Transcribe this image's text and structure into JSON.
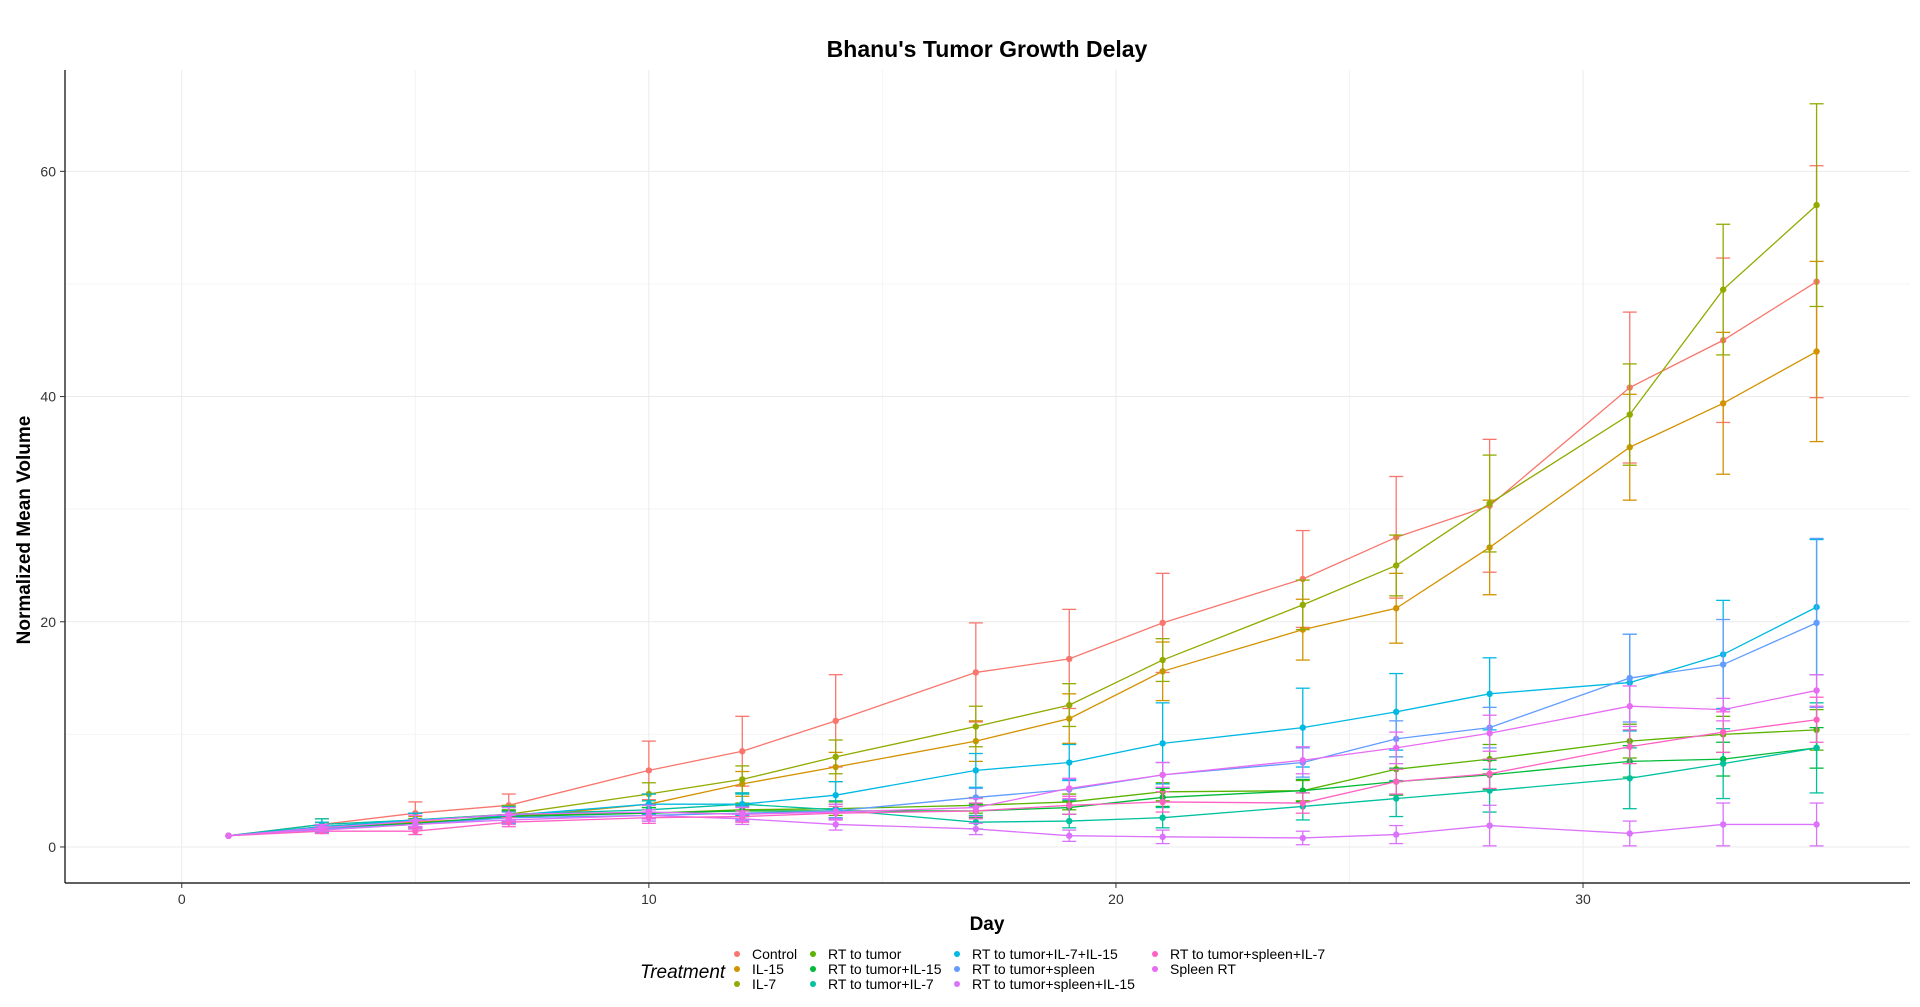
{
  "chart_data": {
    "type": "line",
    "title": "Bhanu's Tumor Growth Delay",
    "xlabel": "Day",
    "ylabel": "Normalized Mean Volume",
    "xlim": [
      -2.5,
      37
    ],
    "ylim": [
      -3.2,
      69
    ],
    "xticks": [
      0,
      10,
      20,
      30
    ],
    "yticks": [
      0,
      20,
      40,
      60
    ],
    "grid": true,
    "legend": {
      "title": "Treatment",
      "position": "bottom"
    },
    "series": [
      {
        "name": "Control",
        "color": "#F8766D",
        "x": [
          1,
          3,
          5,
          7,
          10,
          12,
          14,
          17,
          19,
          21,
          24,
          26,
          28,
          31,
          33,
          35
        ],
        "y": [
          1,
          2.0,
          3.0,
          3.7,
          6.8,
          8.5,
          11.2,
          15.5,
          16.7,
          19.9,
          23.8,
          27.5,
          30.3,
          40.8,
          45.0,
          50.2
        ],
        "err": [
          0,
          0.5,
          1.0,
          1.0,
          2.6,
          3.1,
          4.1,
          4.4,
          4.4,
          4.4,
          4.3,
          5.4,
          5.9,
          6.7,
          7.3,
          10.3
        ]
      },
      {
        "name": "IL-15",
        "color": "#D39200",
        "x": [
          1,
          3,
          5,
          7,
          10,
          12,
          14,
          17,
          19,
          21,
          24,
          26,
          28,
          31,
          33,
          35
        ],
        "y": [
          1,
          1.6,
          2.2,
          2.6,
          3.8,
          5.6,
          7.1,
          9.4,
          11.4,
          15.6,
          19.3,
          21.2,
          26.6,
          35.5,
          39.4,
          44.0
        ],
        "err": [
          0,
          0.3,
          0.5,
          0.6,
          0.9,
          1.1,
          1.3,
          1.8,
          2.2,
          2.6,
          2.7,
          3.1,
          4.2,
          4.7,
          6.3,
          8.0
        ]
      },
      {
        "name": "IL-7",
        "color": "#93AA00",
        "x": [
          1,
          3,
          5,
          7,
          10,
          12,
          14,
          17,
          19,
          21,
          24,
          26,
          28,
          31,
          33,
          35
        ],
        "y": [
          1,
          1.8,
          2.4,
          2.9,
          4.7,
          6.0,
          8.0,
          10.7,
          12.6,
          16.6,
          21.5,
          25.0,
          30.5,
          38.4,
          49.5,
          57.0
        ],
        "err": [
          0,
          0.4,
          0.6,
          0.8,
          1.0,
          1.2,
          1.5,
          1.8,
          1.9,
          1.9,
          2.2,
          2.7,
          4.3,
          4.5,
          5.8,
          9.0
        ]
      },
      {
        "name": "RT to tumor",
        "color": "#5BB300",
        "x": [
          1,
          3,
          5,
          7,
          10,
          12,
          14,
          17,
          19,
          21,
          24,
          26,
          28,
          31,
          33,
          35
        ],
        "y": [
          1,
          1.6,
          2.0,
          2.8,
          3.0,
          3.3,
          3.4,
          3.7,
          4.0,
          4.9,
          5.0,
          6.9,
          7.8,
          9.4,
          10.0,
          10.4
        ],
        "err": [
          0,
          0.3,
          0.4,
          0.5,
          0.5,
          0.6,
          0.6,
          0.7,
          0.7,
          0.8,
          0.9,
          1.1,
          1.3,
          1.5,
          1.6,
          1.8
        ]
      },
      {
        "name": "RT to tumor+IL-15",
        "color": "#00BA38",
        "x": [
          1,
          3,
          5,
          7,
          10,
          12,
          14,
          17,
          19,
          21,
          24,
          26,
          28,
          31,
          33,
          35
        ],
        "y": [
          1,
          1.7,
          2.1,
          2.7,
          3.0,
          3.2,
          3.2,
          3.2,
          3.5,
          4.4,
          5.0,
          5.8,
          6.4,
          7.6,
          7.8,
          8.8
        ],
        "err": [
          0,
          0.3,
          0.4,
          0.5,
          0.5,
          0.5,
          0.6,
          0.6,
          0.6,
          0.8,
          1.0,
          1.2,
          1.3,
          1.4,
          1.5,
          1.8
        ]
      },
      {
        "name": "RT to tumor+IL-7",
        "color": "#00C19F",
        "x": [
          1,
          3,
          5,
          7,
          10,
          12,
          14,
          17,
          19,
          21,
          24,
          26,
          28,
          31,
          33,
          35
        ],
        "y": [
          1,
          2.0,
          2.4,
          2.9,
          3.3,
          3.8,
          3.3,
          2.2,
          2.3,
          2.6,
          3.6,
          4.3,
          5.0,
          6.1,
          7.4,
          8.8
        ],
        "err": [
          0,
          0.5,
          0.6,
          0.7,
          0.8,
          0.9,
          0.8,
          0.6,
          0.6,
          0.9,
          1.2,
          1.6,
          1.9,
          2.7,
          3.1,
          4.0
        ]
      },
      {
        "name": "RT to tumor+IL-7+IL-15",
        "color": "#00B9E3",
        "x": [
          1,
          3,
          5,
          7,
          10,
          12,
          14,
          17,
          19,
          21,
          24,
          26,
          28,
          31,
          33,
          35
        ],
        "y": [
          1,
          1.8,
          2.4,
          2.8,
          3.8,
          3.8,
          4.6,
          6.8,
          7.5,
          9.2,
          10.6,
          12.0,
          13.6,
          14.6,
          17.1,
          21.3
        ],
        "err": [
          0,
          0.4,
          0.6,
          0.7,
          0.9,
          1.0,
          1.2,
          1.5,
          1.6,
          3.6,
          3.5,
          3.4,
          3.2,
          4.3,
          4.8,
          6.0
        ]
      },
      {
        "name": "RT to tumor+spleen",
        "color": "#619CFF",
        "x": [
          1,
          3,
          5,
          7,
          10,
          12,
          14,
          17,
          19,
          21,
          24,
          26,
          28,
          31,
          33,
          35
        ],
        "y": [
          1,
          1.6,
          2.0,
          2.6,
          2.8,
          3.0,
          3.2,
          4.4,
          5.1,
          6.4,
          7.5,
          9.6,
          10.6,
          15.0,
          16.2,
          19.9
        ],
        "err": [
          0,
          0.3,
          0.4,
          0.5,
          0.5,
          0.6,
          0.6,
          0.8,
          0.9,
          1.1,
          1.3,
          1.6,
          1.8,
          3.9,
          4.0,
          7.5
        ]
      },
      {
        "name": "RT to tumor+spleen+IL-15",
        "color": "#DB72FB",
        "x": [
          1,
          3,
          5,
          7,
          10,
          12,
          14,
          17,
          19,
          21,
          24,
          26,
          28,
          31,
          33,
          35
        ],
        "y": [
          1,
          1.5,
          2.0,
          2.4,
          2.8,
          2.5,
          2.0,
          1.6,
          1.0,
          0.9,
          0.8,
          1.1,
          1.9,
          1.2,
          2.0,
          2.0
        ],
        "err": [
          0,
          0.3,
          0.4,
          0.4,
          0.5,
          0.5,
          0.5,
          0.5,
          0.5,
          0.6,
          0.6,
          0.8,
          1.8,
          1.1,
          1.9,
          1.9
        ]
      },
      {
        "name": "RT to tumor+spleen+IL-7",
        "color": "#FF61C3",
        "x": [
          1,
          3,
          5,
          7,
          10,
          12,
          14,
          17,
          19,
          21,
          24,
          26,
          28,
          31,
          33,
          35
        ],
        "y": [
          1,
          1.4,
          1.4,
          2.2,
          2.6,
          2.7,
          3.0,
          3.2,
          3.7,
          4.0,
          3.9,
          5.8,
          6.5,
          8.9,
          10.2,
          11.3
        ],
        "err": [
          0,
          0.2,
          0.3,
          0.4,
          0.5,
          0.5,
          0.6,
          0.7,
          0.8,
          0.9,
          0.9,
          1.1,
          1.3,
          1.5,
          1.8,
          2.0
        ]
      },
      {
        "name": "Spleen RT",
        "color": "#E76BF3",
        "x": [
          1,
          3,
          5,
          7,
          10,
          12,
          14,
          17,
          19,
          21,
          24,
          26,
          28,
          31,
          33,
          35
        ],
        "y": [
          1,
          1.7,
          2.3,
          2.9,
          3.1,
          2.9,
          3.1,
          3.5,
          5.2,
          6.4,
          7.7,
          8.8,
          10.1,
          12.5,
          12.2,
          13.9
        ],
        "err": [
          0,
          0.3,
          0.5,
          0.6,
          0.6,
          0.6,
          0.7,
          0.8,
          0.9,
          1.1,
          1.2,
          1.4,
          1.6,
          1.8,
          1.0,
          1.4
        ]
      }
    ]
  }
}
